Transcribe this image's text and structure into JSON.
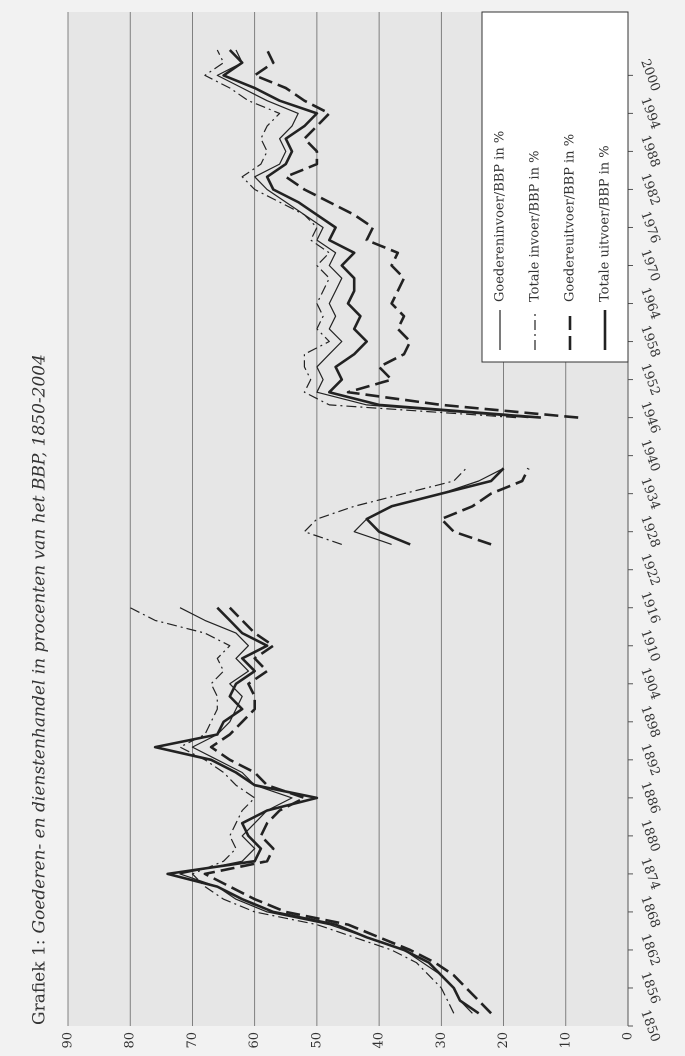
{
  "chart_data": {
    "type": "line",
    "title_label": "Grafiek 1:",
    "title": "Goederen- en dienstenhandel in procenten van het BBP, 1850-2004",
    "x": [
      1852,
      1854,
      1856,
      1858,
      1860,
      1862,
      1864,
      1866,
      1868,
      1870,
      1872,
      1874,
      1876,
      1878,
      1880,
      1882,
      1884,
      1886,
      1888,
      1890,
      1892,
      1894,
      1896,
      1898,
      1900,
      1902,
      1904,
      1906,
      1908,
      1910,
      1912,
      1914,
      1916,
      1918,
      1920,
      1922,
      1924,
      1926,
      1928,
      1930,
      1932,
      1934,
      1936,
      1938,
      1940,
      1942,
      1944,
      1946,
      1948,
      1950,
      1952,
      1954,
      1956,
      1958,
      1960,
      1962,
      1964,
      1966,
      1968,
      1970,
      1972,
      1974,
      1976,
      1978,
      1980,
      1982,
      1984,
      1986,
      1988,
      1990,
      1992,
      1994,
      1996,
      1998,
      2000,
      2002,
      2004
    ],
    "series": [
      {
        "name": "Goedereninvoer/BBP in %",
        "color": "#222222",
        "dash": "solid",
        "width": 1.2,
        "values": [
          25,
          27,
          28,
          30,
          33,
          36,
          42,
          48,
          58,
          63,
          66,
          72,
          62,
          60,
          62,
          60,
          58,
          54,
          60,
          62,
          66,
          70,
          66,
          64,
          63,
          62,
          64,
          61,
          63,
          61,
          63,
          68,
          72,
          null,
          null,
          null,
          null,
          38,
          44,
          42,
          38,
          30,
          24,
          20,
          null,
          null,
          null,
          16,
          42,
          50,
          49,
          50,
          48,
          46,
          48,
          47,
          48,
          47,
          46,
          48,
          47,
          50,
          49,
          52,
          55,
          58,
          60,
          56,
          55,
          56,
          54,
          53,
          58,
          62,
          66,
          62,
          63
        ]
      },
      {
        "name": "Totale invoer/BBP in %",
        "color": "#222222",
        "dash": "dashdot",
        "width": 1.2,
        "values": [
          28,
          29,
          30,
          32,
          34,
          38,
          44,
          50,
          60,
          65,
          68,
          70,
          65,
          63,
          64,
          63,
          62,
          60,
          63,
          65,
          68,
          72,
          68,
          67,
          66,
          66,
          67,
          65,
          66,
          64,
          68,
          76,
          80,
          null,
          null,
          null,
          null,
          46,
          52,
          50,
          44,
          36,
          28,
          26,
          null,
          null,
          null,
          18,
          48,
          52,
          51,
          52,
          52,
          48,
          50,
          49,
          50,
          49,
          48,
          50,
          48,
          51,
          50,
          52,
          56,
          60,
          62,
          59,
          58,
          59,
          58,
          56,
          61,
          64,
          68,
          65,
          66
        ]
      },
      {
        "name": "Goedereuitvoer/BBP in %",
        "color": "#222222",
        "dash": "dashed",
        "width": 2.6,
        "values": [
          22,
          24,
          26,
          28,
          31,
          35,
          40,
          45,
          55,
          60,
          64,
          68,
          58,
          57,
          59,
          58,
          56,
          52,
          58,
          60,
          64,
          67,
          64,
          62,
          60,
          60,
          61,
          58,
          60,
          57,
          60,
          62,
          64,
          null,
          null,
          null,
          null,
          22,
          28,
          30,
          25,
          22,
          17,
          16,
          null,
          null,
          null,
          8,
          30,
          45,
          38,
          40,
          36,
          35,
          37,
          36,
          38,
          37,
          36,
          38,
          37,
          42,
          41,
          44,
          48,
          52,
          55,
          50,
          50,
          52,
          50,
          48,
          52,
          55,
          60,
          57,
          58
        ]
      },
      {
        "name": "Totale uitvoer/BBP in %",
        "color": "#222222",
        "dash": "solid",
        "width": 2.6,
        "values": [
          24,
          27,
          28,
          30,
          32,
          36,
          42,
          47,
          57,
          62,
          66,
          74,
          60,
          59,
          61,
          62,
          58,
          50,
          60,
          63,
          67,
          76,
          66,
          65,
          62,
          64,
          63,
          60,
          62,
          58,
          62,
          64,
          66,
          null,
          null,
          null,
          null,
          35,
          40,
          42,
          38,
          30,
          22,
          20,
          null,
          null,
          null,
          14,
          40,
          48,
          46,
          47,
          44,
          42,
          44,
          43,
          45,
          44,
          44,
          46,
          44,
          48,
          47,
          50,
          53,
          57,
          58,
          55,
          54,
          55,
          52,
          50,
          56,
          60,
          65,
          62,
          64
        ]
      }
    ],
    "xlim": [
      1850,
      2010
    ],
    "xticks": [
      1850,
      1856,
      1862,
      1868,
      1874,
      1880,
      1886,
      1892,
      1898,
      1904,
      1910,
      1916,
      1922,
      1928,
      1934,
      1940,
      1946,
      1952,
      1958,
      1964,
      1970,
      1976,
      1982,
      1988,
      1994,
      2000
    ],
    "ylim": [
      0,
      90
    ],
    "yticks": [
      0,
      10,
      20,
      30,
      40,
      50,
      60,
      70,
      80,
      90
    ],
    "grid": true
  }
}
